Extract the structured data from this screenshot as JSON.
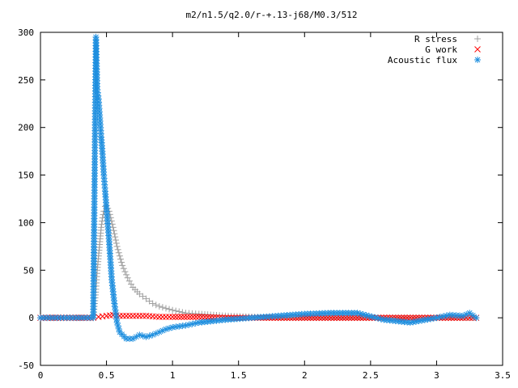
{
  "chart_data": {
    "type": "scatter",
    "title": "m2/n1.5/q2.0/r-+.13-j68/M0.3/512",
    "xlabel": "",
    "ylabel": "",
    "xlim": [
      0,
      3.5
    ],
    "ylim": [
      -50,
      300
    ],
    "x_ticks": [
      "0",
      "0.5",
      "1",
      "1.5",
      "2",
      "2.5",
      "3",
      "3.5"
    ],
    "y_ticks": [
      "-50",
      "0",
      "50",
      "100",
      "150",
      "200",
      "250",
      "300"
    ],
    "grid": false,
    "legend_position": "top-right",
    "series": [
      {
        "name": "R stress",
        "marker": "plus",
        "color": "#a0a0a0",
        "x": [
          0.0,
          0.1,
          0.2,
          0.3,
          0.4,
          0.42,
          0.43,
          0.44,
          0.45,
          0.46,
          0.47,
          0.48,
          0.49,
          0.5,
          0.52,
          0.55,
          0.58,
          0.62,
          0.66,
          0.7,
          0.75,
          0.8,
          0.85,
          0.9,
          0.95,
          1.0,
          1.1,
          1.2,
          1.4,
          1.6,
          1.8,
          2.0,
          2.2,
          2.4,
          2.6,
          2.8,
          3.0,
          3.2,
          3.3
        ],
        "y": [
          0,
          0,
          0,
          0,
          0,
          30,
          50,
          65,
          80,
          95,
          105,
          112,
          117,
          118,
          112,
          95,
          75,
          55,
          42,
          32,
          25,
          20,
          15,
          12,
          10,
          8,
          5,
          4,
          2,
          1,
          0,
          0,
          0,
          0,
          0,
          0,
          0,
          0,
          0
        ]
      },
      {
        "name": "G work",
        "marker": "cross",
        "color": "#ff0000",
        "x": [
          0.0,
          0.2,
          0.4,
          0.44,
          0.5,
          0.55,
          0.6,
          0.7,
          0.8,
          0.9,
          1.0,
          1.2,
          1.4,
          1.6,
          1.8,
          2.0,
          2.2,
          2.4,
          2.6,
          2.8,
          3.0,
          3.2,
          3.3
        ],
        "y": [
          0,
          0,
          0,
          1,
          2,
          3,
          2,
          2,
          2,
          1,
          1,
          1,
          0,
          0,
          0,
          0,
          0,
          0,
          0,
          0,
          0,
          0,
          0
        ]
      },
      {
        "name": "Acoustic flux",
        "marker": "star",
        "color": "#1f8fdf",
        "x": [
          0.0,
          0.1,
          0.2,
          0.3,
          0.4,
          0.42,
          0.43,
          0.44,
          0.45,
          0.46,
          0.47,
          0.48,
          0.49,
          0.5,
          0.52,
          0.54,
          0.56,
          0.58,
          0.6,
          0.65,
          0.7,
          0.75,
          0.8,
          0.85,
          0.9,
          0.95,
          1.0,
          1.1,
          1.2,
          1.4,
          1.6,
          1.8,
          2.0,
          2.2,
          2.4,
          2.6,
          2.8,
          3.0,
          3.1,
          3.2,
          3.25,
          3.3
        ],
        "y": [
          0,
          0,
          0,
          0,
          0,
          295,
          240,
          230,
          210,
          190,
          172,
          150,
          133,
          115,
          80,
          40,
          15,
          -5,
          -15,
          -22,
          -22,
          -18,
          -20,
          -18,
          -15,
          -12,
          -10,
          -8,
          -5,
          -2,
          0,
          2,
          4,
          5,
          5,
          -2,
          -5,
          0,
          3,
          2,
          5,
          0
        ]
      }
    ]
  }
}
